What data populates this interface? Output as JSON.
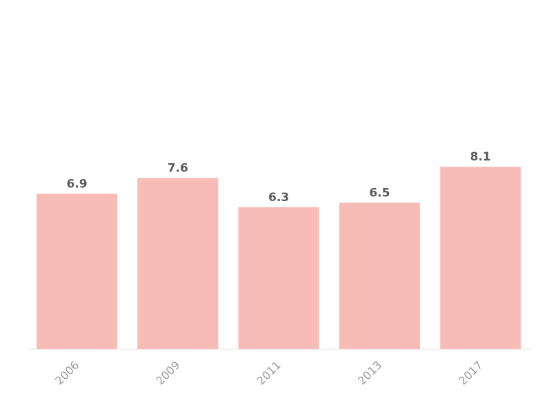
{
  "chart_data": {
    "type": "bar",
    "categories": [
      "2006",
      "2009",
      "2011",
      "2013",
      "2017"
    ],
    "values": [
      6.9,
      7.6,
      6.3,
      6.5,
      8.1
    ],
    "value_labels": [
      "6.9",
      "7.6",
      "6.3",
      "6.5",
      "8.1"
    ],
    "title": "",
    "xlabel": "",
    "ylabel": "",
    "ylim": [
      0,
      15.5
    ],
    "grid": false,
    "legend": "none",
    "colors": {
      "bar": "#f8bcb7",
      "value_label": "#5a5a5a",
      "tick_label": "#9a9a9a",
      "axis_line": "#e6e6e6"
    }
  }
}
